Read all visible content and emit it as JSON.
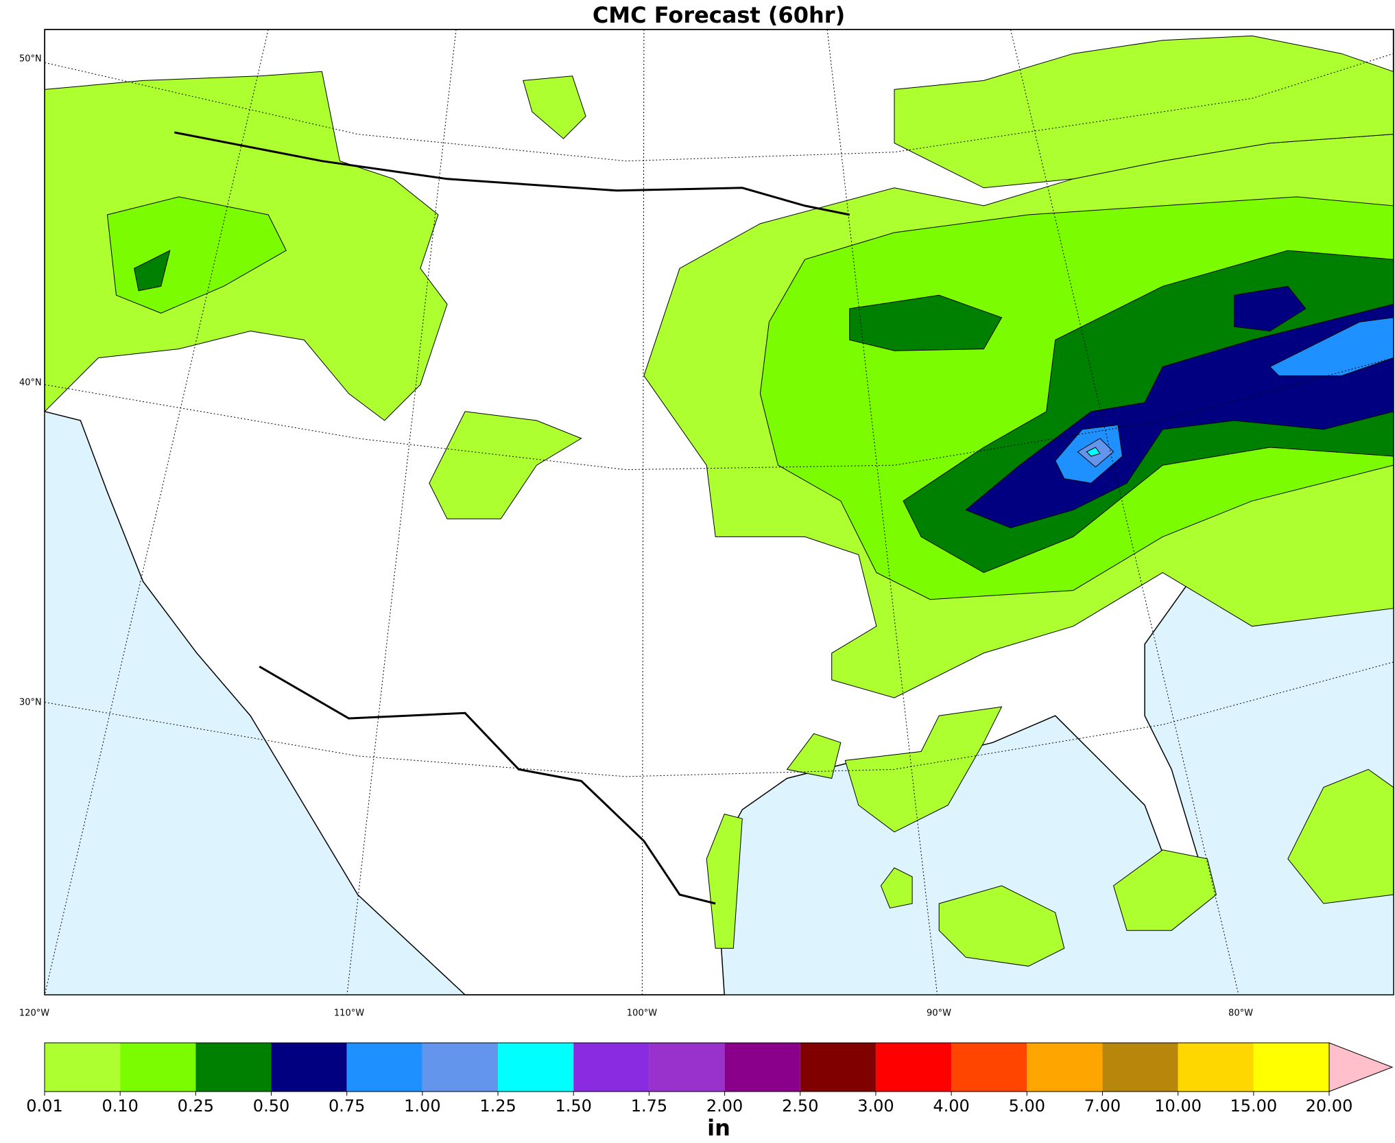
{
  "chart_data": {
    "type": "map",
    "title": "CMC Forecast (60hr)",
    "lat_labels": [
      "50°N",
      "40°N",
      "30°N"
    ],
    "lon_labels": [
      "120°W",
      "110°W",
      "100°W",
      "90°W",
      "80°W"
    ],
    "colorbar": {
      "label": "in",
      "ticks": [
        0.01,
        {
          "value": 0.1,
          "label": "0.10"
        },
        0.25,
        {
          "value": 0.5,
          "label": "0.50"
        },
        0.75,
        {
          "value": 1,
          "label": "1.00"
        },
        1.25,
        {
          "value": 1.5,
          "label": "1.50"
        },
        1.75,
        {
          "value": 2,
          "label": "2.00"
        },
        {
          "value": 2.5,
          "label": "2.50"
        },
        {
          "value": 3,
          "label": "3.00"
        },
        {
          "value": 4,
          "label": "4.00"
        },
        {
          "value": 5,
          "label": "5.00"
        },
        {
          "value": 7,
          "label": "7.00"
        },
        {
          "value": 10,
          "label": "10.00"
        },
        {
          "value": 15,
          "label": "15.00"
        },
        {
          "value": 20,
          "label": "20.00"
        }
      ],
      "colors": [
        "#adff2f",
        "#7cfc00",
        "#008000",
        "#000080",
        "#1e90ff",
        "#6495ed",
        "#00ffff",
        "#8a2be2",
        "#9932cc",
        "#8b008b",
        "#800000",
        "#ff0000",
        "#ff4500",
        "#ffa500",
        "#b8860b",
        "#ffd700",
        "#ffff00"
      ],
      "extend_color": "#ffc0cb"
    }
  }
}
